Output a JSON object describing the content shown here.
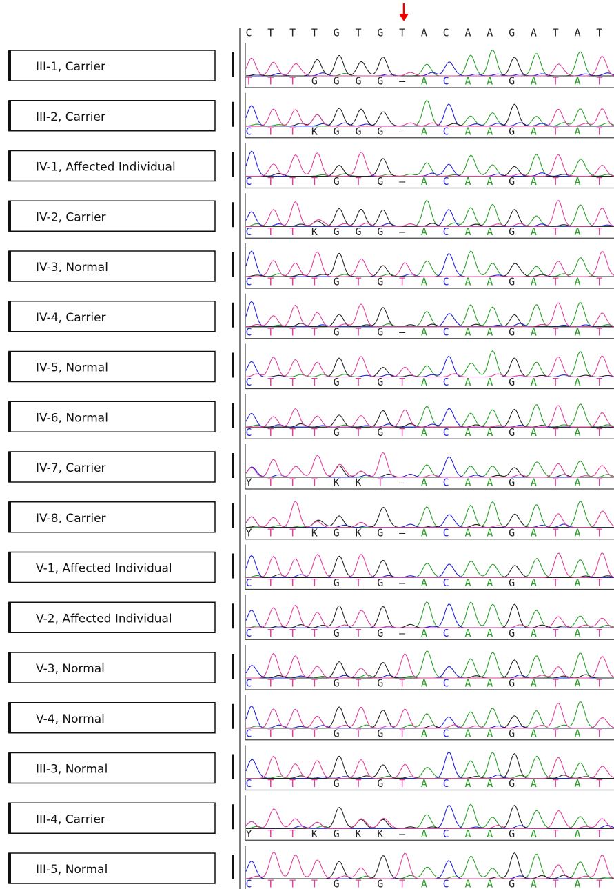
{
  "reference": {
    "bases": [
      "C",
      "T",
      "T",
      "T",
      "G",
      "T",
      "G",
      "T",
      "A",
      "C",
      "A",
      "A",
      "G",
      "A",
      "T",
      "A",
      "T"
    ]
  },
  "rows": [
    {
      "label": "III-1, Carrier",
      "bases": [
        "T",
        "T",
        "T",
        "G",
        "G",
        "G",
        "G",
        "–",
        "A",
        "C",
        "A",
        "A",
        "G",
        "A",
        "T",
        "A",
        "T"
      ]
    },
    {
      "label": "III-2, Carrier",
      "bases": [
        "C",
        "T",
        "T",
        "K",
        "G",
        "G",
        "G",
        "–",
        "A",
        "C",
        "A",
        "A",
        "G",
        "A",
        "T",
        "A",
        "T"
      ]
    },
    {
      "label": "IV-1, Affected Individual",
      "bases": [
        "C",
        "T",
        "T",
        "T",
        "G",
        "T",
        "G",
        "–",
        "A",
        "C",
        "A",
        "A",
        "G",
        "A",
        "T",
        "A",
        "T"
      ]
    },
    {
      "label": "IV-2, Carrier",
      "bases": [
        "C",
        "T",
        "T",
        "K",
        "G",
        "G",
        "G",
        "–",
        "A",
        "C",
        "A",
        "A",
        "G",
        "A",
        "T",
        "A",
        "T"
      ]
    },
    {
      "label": "IV-3, Normal",
      "bases": [
        "C",
        "T",
        "T",
        "T",
        "G",
        "T",
        "G",
        "T",
        "A",
        "C",
        "A",
        "A",
        "G",
        "A",
        "T",
        "A",
        "T"
      ]
    },
    {
      "label": "IV-4, Carrier",
      "bases": [
        "C",
        "T",
        "T",
        "T",
        "G",
        "T",
        "G",
        "–",
        "A",
        "C",
        "A",
        "A",
        "G",
        "A",
        "T",
        "A",
        "T"
      ]
    },
    {
      "label": "IV-5, Normal",
      "bases": [
        "C",
        "T",
        "T",
        "T",
        "G",
        "T",
        "G",
        "T",
        "A",
        "C",
        "A",
        "A",
        "G",
        "A",
        "T",
        "A",
        "T"
      ]
    },
    {
      "label": "IV-6, Normal",
      "bases": [
        "C",
        "T",
        "T",
        "T",
        "G",
        "T",
        "G",
        "T",
        "A",
        "C",
        "A",
        "A",
        "G",
        "A",
        "T",
        "A",
        "T"
      ]
    },
    {
      "label": "IV-7, Carrier",
      "bases": [
        "Y",
        "T",
        "T",
        "T",
        "K",
        "K",
        "T",
        "–",
        "A",
        "C",
        "A",
        "A",
        "G",
        "A",
        "T",
        "A",
        "T"
      ]
    },
    {
      "label": "IV-8, Carrier",
      "bases": [
        "Y",
        "T",
        "T",
        "K",
        "G",
        "K",
        "G",
        "–",
        "A",
        "C",
        "A",
        "A",
        "G",
        "A",
        "T",
        "A",
        "T"
      ]
    },
    {
      "label": "V-1, Affected Individual",
      "bases": [
        "C",
        "T",
        "T",
        "T",
        "G",
        "T",
        "G",
        "–",
        "A",
        "C",
        "A",
        "A",
        "G",
        "A",
        "T",
        "A",
        "T"
      ]
    },
    {
      "label": "V-2, Affected Individual",
      "bases": [
        "C",
        "T",
        "T",
        "T",
        "G",
        "T",
        "G",
        "–",
        "A",
        "C",
        "A",
        "A",
        "G",
        "A",
        "T",
        "A",
        "T"
      ]
    },
    {
      "label": "V-3, Normal",
      "bases": [
        "C",
        "T",
        "T",
        "T",
        "G",
        "T",
        "G",
        "T",
        "A",
        "C",
        "A",
        "A",
        "G",
        "A",
        "T",
        "A",
        "T"
      ]
    },
    {
      "label": "V-4, Normal",
      "bases": [
        "C",
        "T",
        "T",
        "T",
        "G",
        "T",
        "G",
        "T",
        "A",
        "C",
        "A",
        "A",
        "G",
        "A",
        "T",
        "A",
        "T"
      ]
    },
    {
      "label": "III-3, Normal",
      "bases": [
        "C",
        "T",
        "T",
        "T",
        "G",
        "T",
        "G",
        "T",
        "A",
        "C",
        "A",
        "A",
        "G",
        "A",
        "T",
        "A",
        "T"
      ]
    },
    {
      "label": "III-4, Carrier",
      "bases": [
        "Y",
        "T",
        "T",
        "K",
        "G",
        "K",
        "K",
        "–",
        "A",
        "C",
        "A",
        "A",
        "G",
        "A",
        "T",
        "A",
        "T"
      ]
    },
    {
      "label": "III-5, Normal",
      "bases": [
        "C",
        "T",
        "T",
        "T",
        "G",
        "T",
        "G",
        "T",
        "A",
        "C",
        "A",
        "A",
        "G",
        "A",
        "T",
        "A",
        "T"
      ]
    }
  ]
}
